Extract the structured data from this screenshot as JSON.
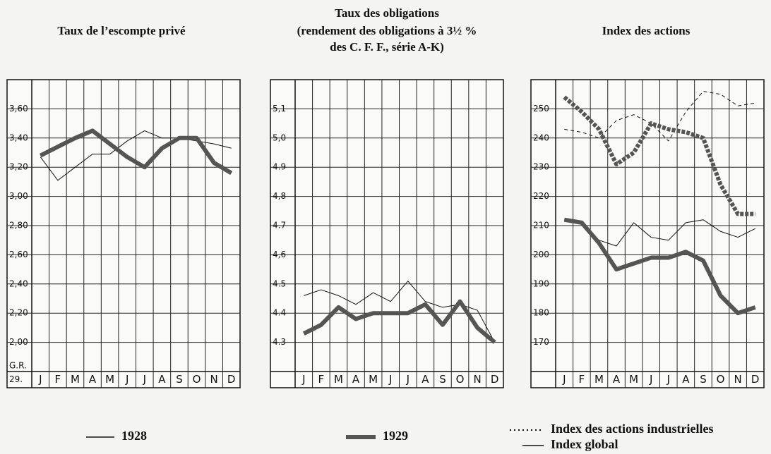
{
  "chart_data": [
    {
      "type": "line",
      "title": "Taux de l’escompte privé",
      "annotation": [
        "G.R.",
        "29."
      ],
      "categories": [
        "J",
        "F",
        "M",
        "A",
        "M",
        "J",
        "J",
        "A",
        "S",
        "O",
        "N",
        "D"
      ],
      "ylim": [
        1.8,
        3.8
      ],
      "yticks": [
        {
          "value": 2.0,
          "label": "2,00"
        },
        {
          "value": 2.2,
          "label": "2,20"
        },
        {
          "value": 2.4,
          "label": "2,40"
        },
        {
          "value": 2.6,
          "label": "2,60"
        },
        {
          "value": 2.8,
          "label": "2,80"
        },
        {
          "value": 3.0,
          "label": "3,00"
        },
        {
          "value": 3.2,
          "label": "3,20"
        },
        {
          "value": 3.4,
          "label": "3,40"
        },
        {
          "value": 3.6,
          "label": "3,60"
        }
      ],
      "grid": true,
      "series": [
        {
          "name": "1928",
          "color": "#111111",
          "linewidth": 1,
          "values": [
            3.27,
            3.11,
            3.2,
            3.29,
            3.29,
            3.38,
            3.45,
            3.4,
            3.4,
            3.38,
            3.36,
            3.33
          ]
        },
        {
          "name": "1929",
          "color": "#555555",
          "linewidth": 6,
          "values": [
            3.28,
            3.34,
            3.4,
            3.45,
            3.36,
            3.27,
            3.2,
            3.33,
            3.4,
            3.4,
            3.23,
            3.16
          ]
        }
      ]
    },
    {
      "type": "line",
      "title": "Taux des obligations",
      "subtitle": [
        "(rendement des obligations à 3½ %",
        "des C. F. F., série A-K)"
      ],
      "categories": [
        "J",
        "F",
        "M",
        "A",
        "M",
        "J",
        "J",
        "A",
        "S",
        "O",
        "N",
        "D"
      ],
      "ylim": [
        4.2,
        5.2
      ],
      "yticks": [
        4.3,
        4.4,
        4.5,
        {
          "value": 4.6,
          "label": "4,6"
        },
        4.7,
        {
          "value": 4.8,
          "label": "4,8"
        },
        4.9,
        {
          "value": 5.0,
          "label": "5,0"
        },
        {
          "value": 5.1,
          "label": "5,1"
        }
      ],
      "grid": true,
      "series": [
        {
          "name": "1928",
          "color": "#111111",
          "linewidth": 1,
          "values": [
            4.46,
            4.48,
            4.46,
            4.43,
            4.47,
            4.44,
            4.51,
            4.44,
            4.42,
            4.43,
            4.41,
            4.3
          ]
        },
        {
          "name": "1929",
          "color": "#555555",
          "linewidth": 6,
          "values": [
            4.33,
            4.36,
            4.42,
            4.38,
            4.4,
            4.4,
            4.4,
            4.43,
            4.36,
            4.44,
            4.35,
            4.3
          ]
        }
      ]
    },
    {
      "type": "line",
      "title": "Index des actions",
      "categories": [
        "J",
        "F",
        "M",
        "A",
        "M",
        "J",
        "J",
        "A",
        "S",
        "O",
        "N",
        "D"
      ],
      "ylim": [
        160,
        260
      ],
      "yticks": [
        170,
        180,
        190,
        200,
        210,
        220,
        230,
        240,
        250
      ],
      "grid": true,
      "groups": [
        {
          "name": "Index des actions industrielles",
          "dash": true,
          "series": [
            {
              "name": "1928",
              "color": "#111111",
              "linewidth": 1,
              "values": [
                243,
                242,
                240,
                246,
                248,
                245,
                239,
                249,
                256,
                255,
                251,
                252
              ]
            },
            {
              "name": "1929",
              "color": "#555555",
              "linewidth": 6,
              "values": [
                254,
                249,
                243,
                231,
                235,
                245,
                243,
                242,
                240,
                224,
                214,
                214
              ]
            }
          ]
        },
        {
          "name": "Index global",
          "dash": false,
          "series": [
            {
              "name": "1928",
              "color": "#111111",
              "linewidth": 1,
              "values": [
                212,
                211,
                205,
                203,
                211,
                206,
                205,
                211,
                212,
                208,
                206,
                209
              ]
            },
            {
              "name": "1929",
              "color": "#555555",
              "linewidth": 6,
              "values": [
                212,
                211,
                204,
                195,
                197,
                199,
                199,
                201,
                198,
                186,
                180,
                182
              ]
            }
          ]
        }
      ]
    }
  ]
}
